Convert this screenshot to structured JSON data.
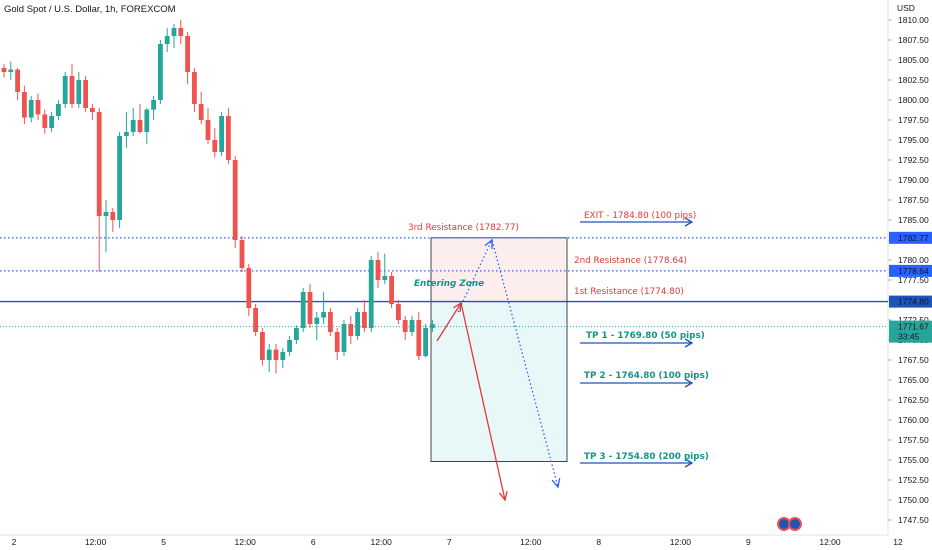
{
  "header": {
    "title": "Gold Spot / U.S. Dollar, 1h, FOREXCOM",
    "currency": "USD"
  },
  "colors": {
    "bull": "#26a69a",
    "bear": "#ef5350",
    "blue": "#1e53b8",
    "blue_dot": "#2962ff",
    "red_ann": "#e53935",
    "green_ann": "#16928a",
    "axis_text": "#131722"
  },
  "chart_data": {
    "type": "candlestick",
    "title": "Gold Spot / U.S. Dollar, 1h, FOREXCOM",
    "ylim": [
      1746.0,
      1811.5
    ],
    "y_ticks": [
      1747.5,
      1750.0,
      1752.5,
      1755.0,
      1757.5,
      1760.0,
      1762.5,
      1765.0,
      1767.5,
      1770.0,
      1772.5,
      1775.0,
      1777.5,
      1780.0,
      1782.5,
      1785.0,
      1787.5,
      1790.0,
      1792.5,
      1795.0,
      1797.5,
      1800.0,
      1802.5,
      1805.0,
      1807.5,
      1810.0
    ],
    "x_ticks": [
      {
        "label": "2",
        "i": 0
      },
      {
        "label": "12:00",
        "i": 12
      },
      {
        "label": "5",
        "i": 22
      },
      {
        "label": "12:00",
        "i": 34
      },
      {
        "label": "6",
        "i": 44
      },
      {
        "label": "12:00",
        "i": 54
      },
      {
        "label": "7",
        "i": 64
      },
      {
        "label": "12:00",
        "i": 76
      },
      {
        "label": "8",
        "i": 86
      },
      {
        "label": "12:00",
        "i": 98
      },
      {
        "label": "9",
        "i": 108
      },
      {
        "label": "12:00",
        "i": 120
      },
      {
        "label": "12",
        "i": 130
      }
    ],
    "candles": [
      [
        1804.0,
        1804.5,
        1802.8,
        1803.5
      ],
      [
        1803.5,
        1804.8,
        1802.5,
        1803.8
      ],
      [
        1803.8,
        1804.0,
        1800.0,
        1801.0
      ],
      [
        1801.0,
        1801.8,
        1797.0,
        1797.8
      ],
      [
        1797.8,
        1800.5,
        1797.2,
        1800.0
      ],
      [
        1800.0,
        1800.8,
        1797.5,
        1798.2
      ],
      [
        1798.2,
        1798.8,
        1795.8,
        1796.5
      ],
      [
        1796.5,
        1798.5,
        1796.0,
        1798.0
      ],
      [
        1798.0,
        1800.0,
        1797.5,
        1799.5
      ],
      [
        1799.5,
        1803.5,
        1799.0,
        1803.0
      ],
      [
        1803.0,
        1804.5,
        1799.0,
        1799.5
      ],
      [
        1799.5,
        1803.5,
        1799.0,
        1802.5
      ],
      [
        1802.5,
        1803.0,
        1798.5,
        1799.0
      ],
      [
        1799.0,
        1799.5,
        1797.5,
        1798.5
      ],
      [
        1798.5,
        1799.0,
        1778.5,
        1785.5
      ],
      [
        1785.5,
        1787.5,
        1781.0,
        1786.0
      ],
      [
        1786.0,
        1786.5,
        1783.5,
        1785.0
      ],
      [
        1785.0,
        1796.0,
        1784.0,
        1795.5
      ],
      [
        1795.5,
        1798.5,
        1794.0,
        1796.0
      ],
      [
        1796.0,
        1799.0,
        1795.5,
        1797.5
      ],
      [
        1797.5,
        1799.5,
        1795.8,
        1796.0
      ],
      [
        1796.0,
        1799.0,
        1794.5,
        1798.8
      ],
      [
        1798.8,
        1800.5,
        1797.5,
        1800.0
      ],
      [
        1800.0,
        1807.5,
        1799.5,
        1807.0
      ],
      [
        1807.0,
        1809.0,
        1806.0,
        1808.0
      ],
      [
        1808.0,
        1809.5,
        1806.5,
        1809.0
      ],
      [
        1809.0,
        1810.0,
        1807.0,
        1808.0
      ],
      [
        1808.0,
        1808.5,
        1802.0,
        1803.5
      ],
      [
        1803.5,
        1804.0,
        1798.5,
        1799.5
      ],
      [
        1799.5,
        1801.0,
        1797.0,
        1797.5
      ],
      [
        1797.5,
        1799.0,
        1794.5,
        1795.0
      ],
      [
        1795.0,
        1796.5,
        1792.8,
        1793.5
      ],
      [
        1793.5,
        1798.5,
        1793.0,
        1798.0
      ],
      [
        1798.0,
        1799.0,
        1792.0,
        1792.5
      ],
      [
        1792.5,
        1793.0,
        1781.5,
        1782.5
      ],
      [
        1782.5,
        1783.0,
        1778.5,
        1779.0
      ],
      [
        1779.0,
        1779.5,
        1773.0,
        1774.0
      ],
      [
        1774.0,
        1774.5,
        1770.5,
        1771.0
      ],
      [
        1771.0,
        1771.5,
        1766.8,
        1767.5
      ],
      [
        1767.5,
        1769.5,
        1766.0,
        1768.8
      ],
      [
        1768.8,
        1769.5,
        1765.8,
        1767.5
      ],
      [
        1767.5,
        1769.0,
        1766.5,
        1768.5
      ],
      [
        1768.5,
        1770.5,
        1768.0,
        1770.0
      ],
      [
        1770.0,
        1771.8,
        1769.5,
        1771.5
      ],
      [
        1771.5,
        1776.5,
        1771.0,
        1776.0
      ],
      [
        1776.0,
        1777.0,
        1771.5,
        1772.0
      ],
      [
        1772.0,
        1773.5,
        1770.0,
        1772.8
      ],
      [
        1772.8,
        1776.0,
        1772.0,
        1773.5
      ],
      [
        1773.5,
        1774.0,
        1770.5,
        1771.0
      ],
      [
        1771.0,
        1771.5,
        1767.5,
        1768.5
      ],
      [
        1768.5,
        1772.5,
        1768.0,
        1772.0
      ],
      [
        1772.0,
        1773.0,
        1769.5,
        1770.5
      ],
      [
        1770.5,
        1774.0,
        1770.0,
        1773.5
      ],
      [
        1773.5,
        1775.0,
        1771.0,
        1771.5
      ],
      [
        1771.5,
        1780.5,
        1771.0,
        1780.0
      ],
      [
        1780.0,
        1781.0,
        1776.5,
        1777.5
      ],
      [
        1777.5,
        1780.8,
        1777.0,
        1778.0
      ],
      [
        1778.0,
        1778.5,
        1774.0,
        1774.5
      ],
      [
        1774.5,
        1775.0,
        1772.0,
        1772.5
      ],
      [
        1772.5,
        1773.0,
        1770.0,
        1771.0
      ],
      [
        1771.0,
        1773.0,
        1770.5,
        1772.5
      ],
      [
        1772.5,
        1773.5,
        1767.5,
        1768.0
      ],
      [
        1768.0,
        1772.0,
        1767.8,
        1771.5
      ],
      [
        1771.5,
        1772.5,
        1771.0,
        1772.0
      ]
    ],
    "last_price": {
      "value": "1771.67",
      "countdown": "33:45"
    }
  },
  "levels": {
    "r3": {
      "value": 1782.77,
      "label": "1782.77"
    },
    "r2": {
      "value": 1778.64,
      "label": "1778.64"
    },
    "r1": {
      "value": 1774.8,
      "label": "1774.80"
    }
  },
  "annotations": {
    "exit": "EXIT - 1784.80 (100 pips)",
    "r3": "3rd Resistance (1782.77)",
    "r2": "2nd Resistance (1778.64)",
    "r1": "1st Resistance (1774.80)",
    "entry": "Entering Zone",
    "tp1": "TP 1 - 1769.80 (50 pips)",
    "tp2": "TP 2 - 1764.80 (100 pips)",
    "tp3": "TP 3 - 1754.80 (200 pips)"
  }
}
